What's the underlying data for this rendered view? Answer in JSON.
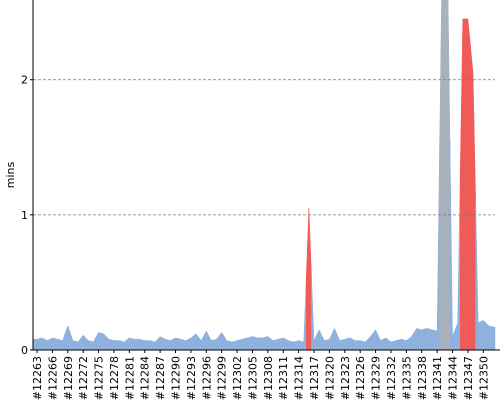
{
  "chart_data": {
    "type": "area",
    "y_label": "mins",
    "categories": [
      "#12263",
      null,
      null,
      "#12266",
      null,
      null,
      "#12269",
      null,
      null,
      "#12272",
      null,
      null,
      "#12275",
      null,
      null,
      "#12278",
      null,
      null,
      "#12281",
      null,
      null,
      "#12284",
      null,
      null,
      "#12287",
      null,
      null,
      "#12290",
      null,
      null,
      "#12293",
      null,
      null,
      "#12296",
      null,
      null,
      "#12299",
      null,
      null,
      "#12302",
      null,
      null,
      "#12305",
      null,
      null,
      "#12308",
      null,
      null,
      "#12311",
      null,
      null,
      "#12314",
      null,
      null,
      "#12317",
      null,
      null,
      "#12320",
      null,
      null,
      "#12323",
      null,
      null,
      "#12326",
      null,
      null,
      "#12329",
      null,
      null,
      "#12332",
      null,
      null,
      "#12335",
      null,
      null,
      "#12338",
      null,
      null,
      "#12341",
      null,
      null,
      "#12344",
      null,
      null,
      "#12347",
      null,
      null,
      "#12350",
      null,
      null
    ],
    "values": [
      0.08,
      0.09,
      0.07,
      0.09,
      0.08,
      0.07,
      0.18,
      0.07,
      0.06,
      0.11,
      0.07,
      0.06,
      0.13,
      0.12,
      0.08,
      0.07,
      0.07,
      0.06,
      0.09,
      0.08,
      0.08,
      0.07,
      0.07,
      0.06,
      0.1,
      0.08,
      0.07,
      0.09,
      0.08,
      0.07,
      0.09,
      0.12,
      0.07,
      0.14,
      0.07,
      0.08,
      0.13,
      0.07,
      0.06,
      0.07,
      0.08,
      0.09,
      0.1,
      0.09,
      0.09,
      0.1,
      0.07,
      0.08,
      0.09,
      0.07,
      0.06,
      0.07,
      0.06,
      1.05,
      0.07,
      0.15,
      0.07,
      0.08,
      0.16,
      0.07,
      0.08,
      0.09,
      0.07,
      0.07,
      0.06,
      0.1,
      0.15,
      0.07,
      0.09,
      0.06,
      0.07,
      0.08,
      0.07,
      0.1,
      0.16,
      0.15,
      0.16,
      0.15,
      0.14,
      3.0,
      3.0,
      0.1,
      0.2,
      2.45,
      2.45,
      2.05,
      0.2,
      0.22,
      0.18,
      0.17
    ],
    "colors": [
      "#8fb1dd",
      "#8fb1dd",
      "#8fb1dd",
      "#8fb1dd",
      "#8fb1dd",
      "#8fb1dd",
      "#8fb1dd",
      "#8fb1dd",
      "#8fb1dd",
      "#8fb1dd",
      "#8fb1dd",
      "#8fb1dd",
      "#8fb1dd",
      "#8fb1dd",
      "#8fb1dd",
      "#8fb1dd",
      "#8fb1dd",
      "#8fb1dd",
      "#8fb1dd",
      "#8fb1dd",
      "#8fb1dd",
      "#8fb1dd",
      "#8fb1dd",
      "#8fb1dd",
      "#8fb1dd",
      "#8fb1dd",
      "#8fb1dd",
      "#8fb1dd",
      "#8fb1dd",
      "#8fb1dd",
      "#8fb1dd",
      "#8fb1dd",
      "#8fb1dd",
      "#8fb1dd",
      "#8fb1dd",
      "#8fb1dd",
      "#8fb1dd",
      "#8fb1dd",
      "#8fb1dd",
      "#8fb1dd",
      "#8fb1dd",
      "#8fb1dd",
      "#8fb1dd",
      "#8fb1dd",
      "#8fb1dd",
      "#8fb1dd",
      "#8fb1dd",
      "#8fb1dd",
      "#8fb1dd",
      "#8fb1dd",
      "#8fb1dd",
      "#8fb1dd",
      "#8fb1dd",
      "#f05a57",
      "#8fb1dd",
      "#8fb1dd",
      "#8fb1dd",
      "#8fb1dd",
      "#8fb1dd",
      "#8fb1dd",
      "#8fb1dd",
      "#8fb1dd",
      "#8fb1dd",
      "#8fb1dd",
      "#8fb1dd",
      "#8fb1dd",
      "#8fb1dd",
      "#8fb1dd",
      "#8fb1dd",
      "#8fb1dd",
      "#8fb1dd",
      "#8fb1dd",
      "#8fb1dd",
      "#8fb1dd",
      "#8fb1dd",
      "#8fb1dd",
      "#8fb1dd",
      "#8fb1dd",
      "#8fb1dd",
      "#a9b1bb",
      "#a9b1bb",
      "#8fb1dd",
      "#8fb1dd",
      "#f05a57",
      "#f05a57",
      "#f05a57",
      "#8fb1dd",
      "#8fb1dd",
      "#8fb1dd",
      "#8fb1dd"
    ],
    "ylim": [
      0,
      2.59
    ],
    "yticks": [
      0,
      1,
      2
    ],
    "grid": true
  }
}
